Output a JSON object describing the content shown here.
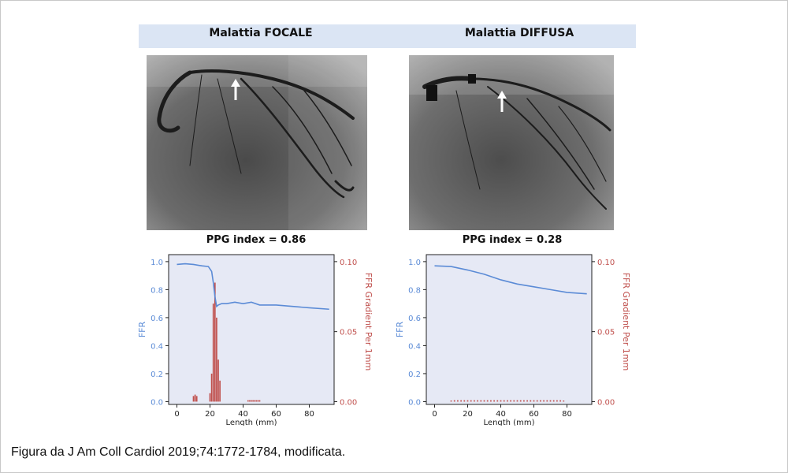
{
  "panels": {
    "left": {
      "title": "Malattia FOCALE",
      "ppg_label": "PPG index = 0.86"
    },
    "right": {
      "title": "Malattia DIFFUSA",
      "ppg_label": "PPG index = 0.28"
    }
  },
  "caption": "Figura da J Am Coll Cardiol 2019;74:1772-1784, modificata.",
  "colors": {
    "header_band": "#dbe5f4",
    "ffr_line": "#5b8bd6",
    "gradient_bar": "#c0504d",
    "plot_bg": "#e6e9f5"
  },
  "icons": {
    "angiogram_arrow": "arrow-up-icon"
  },
  "chart_data": [
    {
      "type": "line",
      "xlabel": "Length (mm)",
      "ylabel": "FFR",
      "y2label": "FFR Gradient Per 1mm",
      "xlim": [
        -5,
        95
      ],
      "xticks": [
        0,
        20,
        40,
        60,
        80
      ],
      "ylim": [
        -0.02,
        1.05
      ],
      "yticks": [
        "0.0",
        "0.2",
        "0.4",
        "0.6",
        "0.8",
        "1.0"
      ],
      "y2lim": [
        -0.002,
        0.105
      ],
      "y2ticks": [
        "0.00",
        "0.05",
        "0.10"
      ],
      "series": [
        {
          "kind": "line",
          "axis": "y",
          "x": [
            0,
            5,
            10,
            15,
            19,
            21,
            22,
            23,
            24,
            25,
            27,
            30,
            35,
            40,
            45,
            50,
            60,
            70,
            80,
            92
          ],
          "y": [
            0.98,
            0.985,
            0.98,
            0.97,
            0.965,
            0.93,
            0.85,
            0.75,
            0.68,
            0.69,
            0.7,
            0.7,
            0.71,
            0.7,
            0.71,
            0.69,
            0.69,
            0.68,
            0.67,
            0.66
          ]
        },
        {
          "kind": "bar",
          "axis": "y2",
          "x": [
            10,
            11,
            12,
            20,
            21,
            22,
            23,
            24,
            25,
            26,
            43,
            44,
            45,
            46,
            47,
            48,
            49,
            50
          ],
          "y": [
            0.004,
            0.005,
            0.004,
            0.006,
            0.02,
            0.07,
            0.085,
            0.06,
            0.03,
            0.015,
            0.001,
            0.001,
            0.001,
            0.001,
            0.001,
            0.001,
            0.001,
            0.001
          ]
        }
      ]
    },
    {
      "type": "line",
      "xlabel": "Length (mm)",
      "ylabel": "FFR",
      "y2label": "FFR Gradient Per 1mm",
      "xlim": [
        -5,
        95
      ],
      "xticks": [
        0,
        20,
        40,
        60,
        80
      ],
      "ylim": [
        -0.02,
        1.05
      ],
      "yticks": [
        "0.0",
        "0.2",
        "0.4",
        "0.6",
        "0.8",
        "1.0"
      ],
      "y2lim": [
        -0.002,
        0.105
      ],
      "y2ticks": [
        "0.00",
        "0.05",
        "0.10"
      ],
      "series": [
        {
          "kind": "line",
          "axis": "y",
          "x": [
            0,
            10,
            20,
            30,
            40,
            50,
            60,
            70,
            80,
            92
          ],
          "y": [
            0.97,
            0.965,
            0.94,
            0.91,
            0.87,
            0.84,
            0.82,
            0.8,
            0.78,
            0.77
          ]
        },
        {
          "kind": "bar",
          "axis": "y2",
          "x": [
            10,
            12,
            14,
            16,
            18,
            20,
            22,
            24,
            26,
            28,
            30,
            32,
            34,
            36,
            38,
            40,
            42,
            44,
            46,
            48,
            50,
            52,
            54,
            56,
            58,
            60,
            62,
            64,
            66,
            68,
            70,
            72,
            74,
            76,
            78
          ],
          "y": [
            0.0008,
            0.001,
            0.001,
            0.001,
            0.001,
            0.001,
            0.001,
            0.001,
            0.001,
            0.001,
            0.001,
            0.001,
            0.001,
            0.001,
            0.001,
            0.001,
            0.001,
            0.001,
            0.001,
            0.001,
            0.001,
            0.001,
            0.001,
            0.001,
            0.001,
            0.001,
            0.001,
            0.001,
            0.001,
            0.001,
            0.001,
            0.001,
            0.001,
            0.001,
            0.0008
          ]
        }
      ]
    }
  ]
}
